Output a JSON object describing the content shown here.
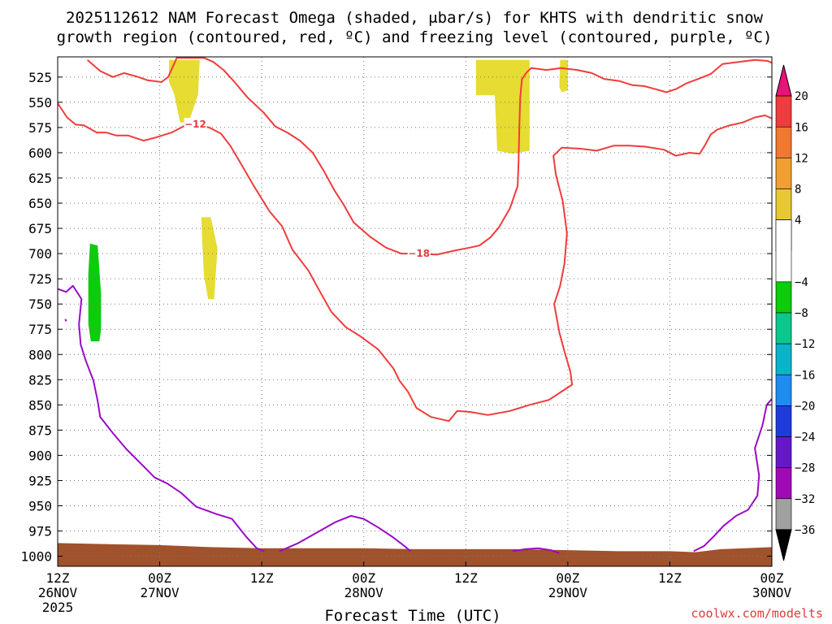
{
  "chart_data": {
    "type": "time-height-contour",
    "title_line1": "2025112612 NAM Forecast Omega (shaded, μbar/s) for KHTS with dendritic snow",
    "title_line2": "growth region (contoured, red, ºC) and freezing level (contoured, purple, ºC)",
    "xlabel": "Forecast Time (UTC)",
    "credit": "coolwx.com/modelts",
    "x_ticks": [
      {
        "hours": 0,
        "hour": "12Z",
        "date": "26NOV",
        "year": "2025"
      },
      {
        "hours": 12,
        "hour": "00Z",
        "date": "27NOV",
        "year": ""
      },
      {
        "hours": 24,
        "hour": "12Z",
        "date": "",
        "year": ""
      },
      {
        "hours": 36,
        "hour": "00Z",
        "date": "28NOV",
        "year": ""
      },
      {
        "hours": 48,
        "hour": "12Z",
        "date": "",
        "year": ""
      },
      {
        "hours": 60,
        "hour": "00Z",
        "date": "29NOV",
        "year": ""
      },
      {
        "hours": 72,
        "hour": "12Z",
        "date": "",
        "year": ""
      },
      {
        "hours": 84,
        "hour": "00Z",
        "date": "30NOV",
        "year": ""
      }
    ],
    "xlim_hours": [
      0,
      84
    ],
    "y_ticks_mb": [
      525,
      550,
      575,
      600,
      625,
      650,
      675,
      700,
      725,
      750,
      775,
      800,
      825,
      850,
      875,
      900,
      925,
      950,
      975,
      1000
    ],
    "ylim_mb": [
      505,
      1010
    ],
    "colorbar": {
      "labels": [
        "20",
        "16",
        "12",
        "8",
        "4",
        "-4",
        "-8",
        "-12",
        "-16",
        "-20",
        "-24",
        "-28",
        "-32",
        "-36"
      ],
      "bins": [
        {
          "from": 20,
          "to": 24,
          "color": "#e8137a"
        },
        {
          "from": 16,
          "to": 20,
          "color": "#f03c3c"
        },
        {
          "from": 12,
          "to": 16,
          "color": "#f07830"
        },
        {
          "from": 8,
          "to": 12,
          "color": "#f0a030"
        },
        {
          "from": 4,
          "to": 8,
          "color": "#e8c832"
        },
        {
          "from": 0,
          "to": 4,
          "color": "#e6dc32"
        },
        {
          "from": -4,
          "to": 4,
          "color": "#ffffff"
        },
        {
          "from": -8,
          "to": -4,
          "color": "#0ccc0c"
        },
        {
          "from": -12,
          "to": -8,
          "color": "#0ac88c"
        },
        {
          "from": -16,
          "to": -12,
          "color": "#0ab4c8"
        },
        {
          "from": -20,
          "to": -16,
          "color": "#1e8cf0"
        },
        {
          "from": -24,
          "to": -20,
          "color": "#1e3cdc"
        },
        {
          "from": -28,
          "to": -24,
          "color": "#6418c8"
        },
        {
          "from": -32,
          "to": -28,
          "color": "#a00ab4"
        },
        {
          "from": -36,
          "to": -32,
          "color": "#a0a0a0"
        },
        {
          "from": -40,
          "to": -36,
          "color": "#000000"
        }
      ]
    },
    "omega_regions": [
      {
        "value": 5,
        "color": "#e6dc32",
        "points": [
          [
            13.1,
            508
          ],
          [
            16.7,
            508
          ],
          [
            16.5,
            543
          ],
          [
            15.6,
            565
          ],
          [
            15.5,
            570
          ],
          [
            14.4,
            570
          ],
          [
            13.7,
            542
          ],
          [
            13.1,
            530
          ]
        ]
      },
      {
        "value": 5,
        "color": "#e6dc32",
        "points": [
          [
            16.9,
            664
          ],
          [
            18.0,
            664
          ],
          [
            18.8,
            695
          ],
          [
            18.6,
            720
          ],
          [
            18.4,
            745
          ],
          [
            17.7,
            745
          ],
          [
            17.2,
            722
          ],
          [
            17.0,
            688
          ]
        ]
      },
      {
        "value": 5,
        "color": "#e6dc32",
        "points": [
          [
            49.2,
            508
          ],
          [
            55.5,
            508
          ],
          [
            55.5,
            598
          ],
          [
            53.5,
            601
          ],
          [
            51.7,
            598
          ],
          [
            51.4,
            543
          ],
          [
            49.2,
            543
          ]
        ]
      },
      {
        "value": 5,
        "color": "#e6dc32",
        "points": [
          [
            59.1,
            508
          ],
          [
            60.0,
            508
          ],
          [
            60.0,
            538
          ],
          [
            59.3,
            540
          ],
          [
            59.0,
            535
          ]
        ]
      },
      {
        "value": -5,
        "color": "#0ccc0c",
        "points": [
          [
            3.8,
            690
          ],
          [
            4.7,
            692
          ],
          [
            5.1,
            740
          ],
          [
            5.1,
            775
          ],
          [
            4.9,
            787
          ],
          [
            3.9,
            787
          ],
          [
            3.6,
            770
          ],
          [
            3.6,
            720
          ]
        ]
      }
    ],
    "temperature_contours": [
      {
        "level": -12,
        "color": "#f03c3c",
        "label_at": [
          16.2,
          572
        ],
        "points": [
          [
            0,
            551
          ],
          [
            1.1,
            565
          ],
          [
            2.1,
            572
          ],
          [
            3.1,
            573
          ],
          [
            4.6,
            580
          ],
          [
            5.7,
            580
          ],
          [
            6.9,
            583
          ],
          [
            8.3,
            583
          ],
          [
            10.1,
            588
          ],
          [
            11.5,
            585
          ],
          [
            13.4,
            580
          ],
          [
            15.0,
            573
          ],
          [
            16.2,
            572
          ],
          [
            17.8,
            575
          ],
          [
            19.2,
            581
          ],
          [
            20.3,
            593
          ],
          [
            21.7,
            613
          ],
          [
            23.0,
            632
          ],
          [
            24.9,
            658
          ],
          [
            26.4,
            673
          ],
          [
            27.6,
            696
          ],
          [
            29.5,
            717
          ],
          [
            31.0,
            740
          ],
          [
            32.2,
            758
          ],
          [
            33.9,
            773
          ],
          [
            35.6,
            782
          ],
          [
            37.7,
            795
          ],
          [
            39.5,
            814
          ],
          [
            40.2,
            826
          ],
          [
            41.2,
            837
          ],
          [
            42.2,
            853
          ],
          [
            43.9,
            862
          ],
          [
            46.0,
            866
          ],
          [
            47.0,
            856
          ],
          [
            48.5,
            857
          ],
          [
            50.6,
            860
          ],
          [
            53.2,
            856
          ],
          [
            55.5,
            850
          ],
          [
            57.8,
            845
          ],
          [
            59.4,
            836
          ],
          [
            60.5,
            830
          ],
          [
            60.3,
            817
          ],
          [
            59.6,
            797
          ],
          [
            59.0,
            778
          ],
          [
            58.4,
            750
          ],
          [
            59.1,
            732
          ],
          [
            59.6,
            710
          ],
          [
            59.9,
            680
          ],
          [
            59.4,
            648
          ],
          [
            58.6,
            622
          ],
          [
            58.3,
            603
          ],
          [
            59.3,
            595
          ],
          [
            61.5,
            596
          ],
          [
            63.4,
            598
          ],
          [
            65.4,
            593
          ],
          [
            67.2,
            593
          ],
          [
            69.1,
            594
          ],
          [
            71.3,
            597
          ],
          [
            72.7,
            603
          ],
          [
            74.3,
            600
          ],
          [
            75.5,
            601
          ],
          [
            76.1,
            593
          ],
          [
            76.8,
            582
          ],
          [
            77.6,
            577
          ],
          [
            79.0,
            573
          ],
          [
            80.6,
            570
          ],
          [
            82.0,
            565
          ],
          [
            83.2,
            563
          ],
          [
            84,
            566
          ]
        ]
      },
      {
        "level": -18,
        "color": "#f03c3c",
        "label_at": [
          42.5,
          700
        ],
        "points": [
          [
            3.5,
            508
          ],
          [
            5.0,
            519
          ],
          [
            6.5,
            525
          ],
          [
            7.8,
            521
          ],
          [
            9.5,
            525
          ],
          [
            10.5,
            528
          ],
          [
            12.2,
            530
          ],
          [
            13.0,
            525
          ],
          [
            13.8,
            510
          ],
          [
            14.0,
            506
          ],
          [
            17.2,
            506
          ],
          [
            18.3,
            510
          ],
          [
            19.5,
            518
          ],
          [
            20.8,
            530
          ],
          [
            22.3,
            545
          ],
          [
            24.2,
            560
          ],
          [
            25.6,
            574
          ],
          [
            27.0,
            580
          ],
          [
            28.5,
            588
          ],
          [
            30.0,
            600
          ],
          [
            31.3,
            618
          ],
          [
            32.6,
            638
          ],
          [
            33.6,
            651
          ],
          [
            34.8,
            669
          ],
          [
            36.7,
            683
          ],
          [
            38.6,
            694
          ],
          [
            40.4,
            700
          ],
          [
            42.5,
            700
          ],
          [
            44.6,
            701
          ],
          [
            46.7,
            697
          ],
          [
            48.5,
            694
          ],
          [
            49.6,
            692
          ],
          [
            50.9,
            684
          ],
          [
            51.9,
            674
          ],
          [
            53.2,
            655
          ],
          [
            54.1,
            633
          ],
          [
            54.2,
            610
          ],
          [
            54.3,
            574
          ],
          [
            54.4,
            545
          ],
          [
            54.6,
            527
          ],
          [
            55.2,
            520
          ],
          [
            55.7,
            516
          ],
          [
            57.5,
            518
          ],
          [
            59.2,
            516
          ],
          [
            61.1,
            518
          ],
          [
            62.8,
            521
          ],
          [
            64.3,
            527
          ],
          [
            66.1,
            529
          ],
          [
            67.6,
            533
          ],
          [
            69.0,
            534
          ],
          [
            70.3,
            537
          ],
          [
            71.6,
            540
          ],
          [
            72.7,
            537
          ],
          [
            74.0,
            531
          ],
          [
            75.3,
            527
          ],
          [
            76.8,
            522
          ],
          [
            78.2,
            512
          ],
          [
            80.1,
            510
          ],
          [
            82.0,
            508
          ],
          [
            83.5,
            509
          ],
          [
            84,
            511
          ]
        ]
      }
    ],
    "freezing_contours": [
      {
        "level": 0,
        "color": "#9a0ac8",
        "points": [
          [
            0,
            735
          ],
          [
            1.0,
            738
          ],
          [
            1.8,
            732
          ],
          [
            2.8,
            745
          ],
          [
            2.5,
            770
          ],
          [
            2.7,
            790
          ],
          [
            3.3,
            806
          ],
          [
            4.2,
            826
          ],
          [
            4.7,
            846
          ],
          [
            5.0,
            862
          ],
          [
            6.5,
            878
          ],
          [
            8.1,
            894
          ],
          [
            10.0,
            910
          ],
          [
            11.4,
            922
          ],
          [
            12.9,
            928
          ],
          [
            14.5,
            937
          ],
          [
            16.3,
            951
          ],
          [
            18.6,
            958
          ],
          [
            20.5,
            963
          ],
          [
            22.1,
            980
          ],
          [
            23.4,
            992
          ],
          [
            24.3,
            995
          ]
        ]
      },
      {
        "level": 0,
        "color": "#9a0ac8",
        "points": [
          [
            26.1,
            995
          ],
          [
            28.3,
            987
          ],
          [
            30.6,
            976
          ],
          [
            32.7,
            966
          ],
          [
            34.5,
            960
          ],
          [
            36.0,
            963
          ],
          [
            37.8,
            972
          ],
          [
            39.4,
            981
          ],
          [
            40.8,
            990
          ],
          [
            41.5,
            995
          ]
        ]
      },
      {
        "level": 0,
        "color": "#9a0ac8",
        "points": [
          [
            53.5,
            995
          ],
          [
            55.0,
            993
          ],
          [
            56.5,
            992
          ],
          [
            58.0,
            994
          ],
          [
            59.0,
            997
          ]
        ]
      },
      {
        "level": 0,
        "color": "#9a0ac8",
        "points": [
          [
            74.8,
            995
          ],
          [
            76.0,
            990
          ],
          [
            77.2,
            980
          ],
          [
            78.3,
            970
          ],
          [
            79.8,
            960
          ],
          [
            81.2,
            954
          ],
          [
            82.3,
            940
          ],
          [
            82.5,
            920
          ],
          [
            82.0,
            893
          ],
          [
            82.9,
            870
          ],
          [
            83.4,
            850
          ],
          [
            84,
            844
          ]
        ]
      },
      {
        "level": 0,
        "color": "#9a0ac8",
        "points": [
          [
            0.9,
            765
          ],
          [
            1.0,
            767
          ]
        ]
      }
    ],
    "terrain": {
      "color": "#a0522d",
      "surface_mb": [
        [
          0,
          987
        ],
        [
          6,
          988
        ],
        [
          12,
          989
        ],
        [
          18,
          991
        ],
        [
          24,
          992
        ],
        [
          30,
          992
        ],
        [
          36,
          992
        ],
        [
          42,
          993
        ],
        [
          48,
          993
        ],
        [
          54,
          993
        ],
        [
          60,
          994
        ],
        [
          66,
          995
        ],
        [
          72,
          995
        ],
        [
          75,
          996
        ],
        [
          78,
          993
        ],
        [
          84,
          991
        ]
      ]
    }
  }
}
